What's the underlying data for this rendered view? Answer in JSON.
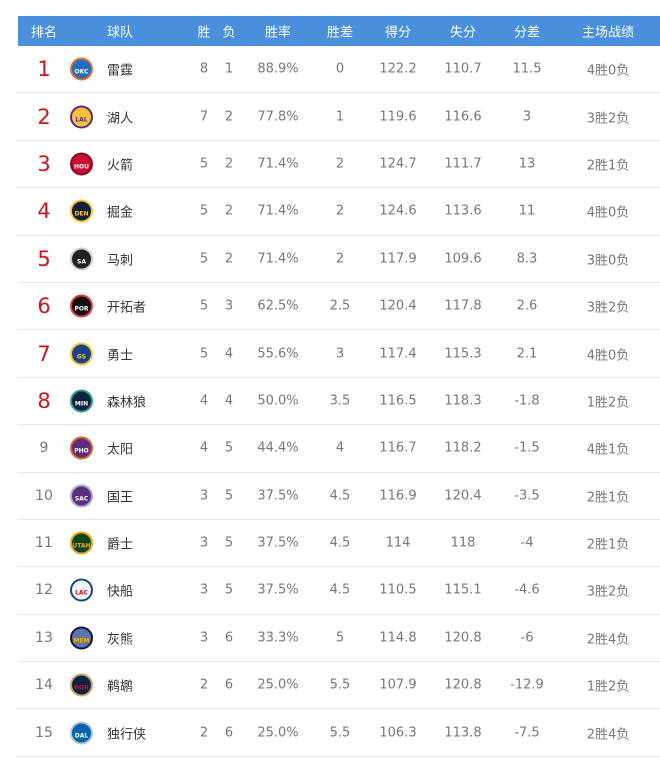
{
  "header": {
    "rank": "排名",
    "team": "球队",
    "w": "胜",
    "l": "负",
    "pct": "胜率",
    "gb": "胜差",
    "pts": "得分",
    "opp": "失分",
    "diff": "分差",
    "home": "主场战绩"
  },
  "colors": {
    "header_bg": "#4a8fdc",
    "top_rank": "#d0121b"
  },
  "rows": [
    {
      "rank": "1",
      "abbr": "OKC",
      "team": "雷霆",
      "w": "8",
      "l": "1",
      "pct": "88.9%",
      "gb": "0",
      "pts": "122.2",
      "opp": "110.7",
      "diff": "11.5",
      "home": "4胜0负",
      "logo_bg": "#1d6fc2",
      "logo_border": "#ef6b2f",
      "logo_text": "#ffffff"
    },
    {
      "rank": "2",
      "abbr": "LAL",
      "team": "湖人",
      "w": "7",
      "l": "2",
      "pct": "77.8%",
      "gb": "1",
      "pts": "119.6",
      "opp": "116.6",
      "diff": "3",
      "home": "3胜2负",
      "logo_bg": "#f6c23a",
      "logo_border": "#5a2d82",
      "logo_text": "#5a2d82"
    },
    {
      "rank": "3",
      "abbr": "HOU",
      "team": "火箭",
      "w": "5",
      "l": "2",
      "pct": "71.4%",
      "gb": "2",
      "pts": "124.7",
      "opp": "111.7",
      "diff": "13",
      "home": "2胜1负",
      "logo_bg": "#c8102e",
      "logo_border": "#8a0c20",
      "logo_text": "#ffffff"
    },
    {
      "rank": "4",
      "abbr": "DEN",
      "team": "掘金",
      "w": "5",
      "l": "2",
      "pct": "71.4%",
      "gb": "2",
      "pts": "124.6",
      "opp": "113.6",
      "diff": "11",
      "home": "4胜0负",
      "logo_bg": "#0e2240",
      "logo_border": "#fec524",
      "logo_text": "#fec524"
    },
    {
      "rank": "5",
      "abbr": "SA",
      "team": "马刺",
      "w": "5",
      "l": "2",
      "pct": "71.4%",
      "gb": "2",
      "pts": "117.9",
      "opp": "109.6",
      "diff": "8.3",
      "home": "3胜0负",
      "logo_bg": "#222222",
      "logo_border": "#c4ced4",
      "logo_text": "#ffffff"
    },
    {
      "rank": "6",
      "abbr": "POR",
      "team": "开拓者",
      "w": "5",
      "l": "3",
      "pct": "62.5%",
      "gb": "2.5",
      "pts": "120.4",
      "opp": "117.8",
      "diff": "2.6",
      "home": "3胜2负",
      "logo_bg": "#111111",
      "logo_border": "#e03a3e",
      "logo_text": "#ffffff"
    },
    {
      "rank": "7",
      "abbr": "GS",
      "team": "勇士",
      "w": "5",
      "l": "4",
      "pct": "55.6%",
      "gb": "3",
      "pts": "117.4",
      "opp": "115.3",
      "diff": "2.1",
      "home": "4胜0负",
      "logo_bg": "#1d428a",
      "logo_border": "#ffc72c",
      "logo_text": "#ffc72c"
    },
    {
      "rank": "8",
      "abbr": "MIN",
      "team": "森林狼",
      "w": "4",
      "l": "4",
      "pct": "50.0%",
      "gb": "3.5",
      "pts": "116.5",
      "opp": "118.3",
      "diff": "-1.8",
      "home": "1胜2负",
      "logo_bg": "#0c2340",
      "logo_border": "#2a9d8f",
      "logo_text": "#ffffff"
    },
    {
      "rank": "9",
      "abbr": "PHO",
      "team": "太阳",
      "w": "4",
      "l": "5",
      "pct": "44.4%",
      "gb": "4",
      "pts": "116.7",
      "opp": "118.2",
      "diff": "-1.5",
      "home": "4胜1负",
      "logo_bg": "#5a2d82",
      "logo_border": "#e56020",
      "logo_text": "#ffffff"
    },
    {
      "rank": "10",
      "abbr": "SAC",
      "team": "国王",
      "w": "3",
      "l": "5",
      "pct": "37.5%",
      "gb": "4.5",
      "pts": "116.9",
      "opp": "120.4",
      "diff": "-3.5",
      "home": "2胜1负",
      "logo_bg": "#5a2d81",
      "logo_border": "#b0a8c8",
      "logo_text": "#ffffff"
    },
    {
      "rank": "11",
      "abbr": "UTAH",
      "team": "爵士",
      "w": "3",
      "l": "5",
      "pct": "37.5%",
      "gb": "4.5",
      "pts": "114",
      "opp": "118",
      "diff": "-4",
      "home": "2胜1负",
      "logo_bg": "#00471b",
      "logo_border": "#f9a01b",
      "logo_text": "#f9a01b"
    },
    {
      "rank": "12",
      "abbr": "LAC",
      "team": "快船",
      "w": "3",
      "l": "5",
      "pct": "37.5%",
      "gb": "4.5",
      "pts": "110.5",
      "opp": "115.1",
      "diff": "-4.6",
      "home": "3胜2负",
      "logo_bg": "#f4f4f4",
      "logo_border": "#1d428a",
      "logo_text": "#c8102e"
    },
    {
      "rank": "13",
      "abbr": "MEM",
      "team": "灰熊",
      "w": "3",
      "l": "6",
      "pct": "33.3%",
      "gb": "5",
      "pts": "114.8",
      "opp": "120.8",
      "diff": "-6",
      "home": "2胜4负",
      "logo_bg": "#5d76a9",
      "logo_border": "#12173f",
      "logo_text": "#f5b112"
    },
    {
      "rank": "14",
      "abbr": "NOR",
      "team": "鹈鹕",
      "w": "2",
      "l": "6",
      "pct": "25.0%",
      "gb": "5.5",
      "pts": "107.9",
      "opp": "120.8",
      "diff": "-12.9",
      "home": "1胜2负",
      "logo_bg": "#0c2340",
      "logo_border": "#c8a76a",
      "logo_text": "#c8102e"
    },
    {
      "rank": "15",
      "abbr": "DAL",
      "team": "独行侠",
      "w": "2",
      "l": "6",
      "pct": "25.0%",
      "gb": "5.5",
      "pts": "106.3",
      "opp": "113.8",
      "diff": "-7.5",
      "home": "2胜4负",
      "logo_bg": "#0064b1",
      "logo_border": "#bbc4ca",
      "logo_text": "#ffffff"
    }
  ]
}
